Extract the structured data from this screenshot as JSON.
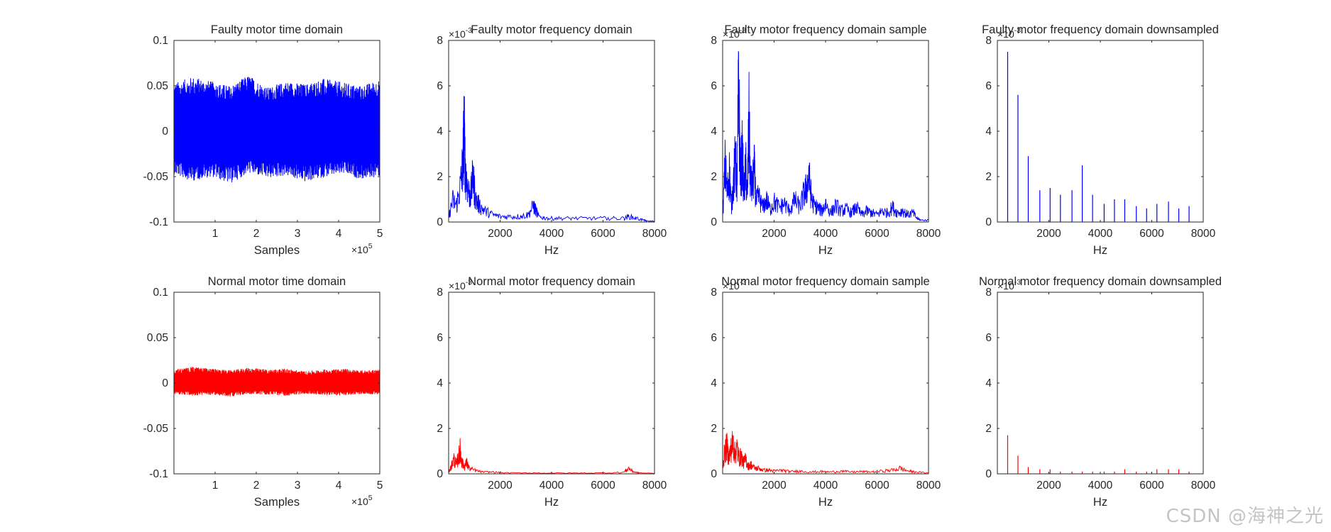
{
  "colors": {
    "faulty": "#0000ff",
    "normal": "#ff0000",
    "axis": "#262626"
  },
  "watermark": "CSDN @海神之光",
  "chart_data": [
    {
      "id": "faulty-time",
      "type": "line",
      "title": "Faulty motor time domain",
      "xlabel": "Samples",
      "x_exponent_base": "×10",
      "x_exponent_power": "5",
      "xlim": [
        0,
        500000
      ],
      "ylim": [
        -0.1,
        0.1
      ],
      "xticks": [
        100000,
        200000,
        300000,
        400000,
        500000
      ],
      "xticklabels": [
        "1",
        "2",
        "3",
        "4",
        "5"
      ],
      "yticks": [
        -0.1,
        -0.05,
        0,
        0.05,
        0.1
      ],
      "yticklabels": [
        "-0.1",
        "-0.05",
        "0",
        "0.05",
        "0.1"
      ],
      "series": [
        {
          "name": "faulty",
          "color": "#0000ff",
          "envelope_upper": [
            0.053,
            0.06,
            0.055,
            0.05,
            0.062,
            0.048,
            0.055,
            0.052,
            0.058,
            0.054,
            0.05,
            0.057
          ],
          "envelope_lower": [
            -0.048,
            -0.055,
            -0.05,
            -0.058,
            -0.046,
            -0.052,
            -0.049,
            -0.056,
            -0.051,
            -0.047,
            -0.053,
            -0.05
          ]
        }
      ]
    },
    {
      "id": "faulty-freq",
      "type": "line",
      "title": "Faulty motor frequency domain",
      "xlabel": "Hz",
      "y_exponent_base": "×10",
      "y_exponent_power": "-3",
      "xlim": [
        0,
        8000
      ],
      "ylim": [
        0,
        0.008
      ],
      "xticks": [
        2000,
        4000,
        6000,
        8000
      ],
      "xticklabels": [
        "2000",
        "4000",
        "6000",
        "8000"
      ],
      "yticks": [
        0,
        0.002,
        0.004,
        0.006,
        0.008
      ],
      "yticklabels": [
        "0",
        "2",
        "4",
        "6",
        "8"
      ],
      "series": [
        {
          "name": "faulty",
          "color": "#0000ff",
          "x": [
            0,
            150,
            300,
            450,
            550,
            600,
            650,
            750,
            850,
            950,
            1050,
            1200,
            1400,
            1700,
            2000,
            2400,
            2800,
            3100,
            3300,
            3400,
            3500,
            3800,
            4200,
            4800,
            5500,
            6200,
            6800,
            7000,
            7300,
            7600,
            7700,
            8000
          ],
          "y": [
            0.0002,
            0.0012,
            0.0009,
            0.0019,
            0.0031,
            0.0052,
            0.0028,
            0.0018,
            0.0014,
            0.0025,
            0.0012,
            0.0009,
            0.0006,
            0.0004,
            0.0003,
            0.0003,
            0.0003,
            0.0004,
            0.0009,
            0.0006,
            0.0003,
            0.0002,
            0.0002,
            0.0002,
            0.0002,
            0.0002,
            0.0002,
            0.0003,
            0.0002,
            0.0001,
            5e-05,
            5e-05
          ]
        }
      ]
    },
    {
      "id": "faulty-freq-sample",
      "type": "line",
      "title": "Faulty motor frequency domain sample",
      "xlabel": "Hz",
      "y_exponent_base": "×10",
      "y_exponent_power": "-3",
      "xlim": [
        0,
        8000
      ],
      "ylim": [
        0,
        0.008
      ],
      "xticks": [
        2000,
        4000,
        6000,
        8000
      ],
      "xticklabels": [
        "2000",
        "4000",
        "6000",
        "8000"
      ],
      "yticks": [
        0,
        0.002,
        0.004,
        0.006,
        0.008
      ],
      "yticklabels": [
        "0",
        "2",
        "4",
        "6",
        "8"
      ],
      "series": [
        {
          "name": "faulty",
          "color": "#0000ff",
          "x": [
            0,
            100,
            180,
            260,
            340,
            420,
            500,
            560,
            620,
            700,
            760,
            830,
            900,
            960,
            1020,
            1080,
            1150,
            1230,
            1300,
            1400,
            1550,
            1700,
            1850,
            2000,
            2200,
            2400,
            2600,
            2800,
            3000,
            3150,
            3250,
            3350,
            3450,
            3550,
            3700,
            3850,
            4000,
            4200,
            4400,
            4600,
            4800,
            5000,
            5200,
            5400,
            5600,
            5800,
            6000,
            6200,
            6400,
            6600,
            6800,
            7000,
            7200,
            7400,
            7550,
            7700,
            8000
          ],
          "y": [
            0.0002,
            0.0032,
            0.0015,
            0.0028,
            0.0008,
            0.0022,
            0.0035,
            0.0018,
            0.0075,
            0.0024,
            0.0038,
            0.0016,
            0.003,
            0.0012,
            0.0056,
            0.0022,
            0.0019,
            0.0029,
            0.0011,
            0.0014,
            0.0008,
            0.0012,
            0.0007,
            0.0011,
            0.0008,
            0.001,
            0.0006,
            0.0012,
            0.0008,
            0.0015,
            0.0018,
            0.0025,
            0.0013,
            0.0009,
            0.0008,
            0.0006,
            0.001,
            0.0005,
            0.0009,
            0.0006,
            0.0007,
            0.0005,
            0.0008,
            0.0004,
            0.0006,
            0.0005,
            0.0004,
            0.0006,
            0.0005,
            0.0008,
            0.0005,
            0.0006,
            0.0004,
            0.0005,
            0.0002,
            0.0001,
            0.0001
          ]
        }
      ]
    },
    {
      "id": "faulty-freq-down",
      "type": "bar",
      "title": "Faulty motor frequency domain downsampled",
      "xlabel": "Hz",
      "y_exponent_base": "×10",
      "y_exponent_power": "-3",
      "xlim": [
        0,
        8000
      ],
      "ylim": [
        0,
        0.008
      ],
      "xticks": [
        2000,
        4000,
        6000,
        8000
      ],
      "xticklabels": [
        "2000",
        "4000",
        "6000",
        "8000"
      ],
      "yticks": [
        0,
        0.002,
        0.004,
        0.006,
        0.008
      ],
      "yticklabels": [
        "0",
        "2",
        "4",
        "6",
        "8"
      ],
      "series": [
        {
          "name": "faulty",
          "color": "#0000ff",
          "x": [
            400,
            800,
            1200,
            1650,
            2050,
            2450,
            2900,
            3300,
            3700,
            4150,
            4550,
            4950,
            5400,
            5800,
            6200,
            6650,
            7050,
            7450
          ],
          "y": [
            0.0075,
            0.0056,
            0.0029,
            0.0014,
            0.0015,
            0.0012,
            0.0014,
            0.0025,
            0.0012,
            0.0008,
            0.001,
            0.001,
            0.0007,
            0.0006,
            0.0008,
            0.0009,
            0.0006,
            0.0007
          ]
        }
      ]
    },
    {
      "id": "normal-time",
      "type": "line",
      "title": "Normal motor time domain",
      "xlabel": "Samples",
      "x_exponent_base": "×10",
      "x_exponent_power": "5",
      "xlim": [
        0,
        500000
      ],
      "ylim": [
        -0.1,
        0.1
      ],
      "xticks": [
        100000,
        200000,
        300000,
        400000,
        500000
      ],
      "xticklabels": [
        "1",
        "2",
        "3",
        "4",
        "5"
      ],
      "yticks": [
        -0.1,
        -0.05,
        0,
        0.05,
        0.1
      ],
      "yticklabels": [
        "-0.1",
        "-0.05",
        "0",
        "0.05",
        "0.1"
      ],
      "series": [
        {
          "name": "normal",
          "color": "#ff0000",
          "envelope_upper": [
            0.015,
            0.018,
            0.016,
            0.014,
            0.017,
            0.015,
            0.016,
            0.013,
            0.015,
            0.016,
            0.014,
            0.015
          ],
          "envelope_lower": [
            -0.012,
            -0.014,
            -0.013,
            -0.015,
            -0.012,
            -0.013,
            -0.014,
            -0.012,
            -0.013,
            -0.014,
            -0.012,
            -0.013
          ]
        }
      ]
    },
    {
      "id": "normal-freq",
      "type": "line",
      "title": "Normal motor frequency domain",
      "xlabel": "Hz",
      "y_exponent_base": "×10",
      "y_exponent_power": "-3",
      "xlim": [
        0,
        8000
      ],
      "ylim": [
        0,
        0.008
      ],
      "xticks": [
        2000,
        4000,
        6000,
        8000
      ],
      "xticklabels": [
        "2000",
        "4000",
        "6000",
        "8000"
      ],
      "yticks": [
        0,
        0.002,
        0.004,
        0.006,
        0.008
      ],
      "yticklabels": [
        "0",
        "2",
        "4",
        "6",
        "8"
      ],
      "series": [
        {
          "name": "normal",
          "color": "#ff0000",
          "x": [
            0,
            100,
            200,
            300,
            400,
            450,
            500,
            600,
            700,
            800,
            1000,
            1300,
            1700,
            2200,
            3000,
            4000,
            5000,
            6000,
            6800,
            7000,
            7200,
            7400,
            8000
          ],
          "y": [
            0.0001,
            0.0004,
            0.0008,
            0.0005,
            0.001,
            0.0013,
            0.0007,
            0.0004,
            0.0006,
            0.0003,
            0.0002,
            0.0001,
            0.0001,
            5e-05,
            5e-05,
            4e-05,
            4e-05,
            5e-05,
            8e-05,
            0.0003,
            0.0001,
            5e-05,
            3e-05
          ]
        }
      ]
    },
    {
      "id": "normal-freq-sample",
      "type": "line",
      "title": "Normal motor frequency domain sample",
      "xlabel": "Hz",
      "y_exponent_base": "×10",
      "y_exponent_power": "-3",
      "xlim": [
        0,
        8000
      ],
      "ylim": [
        0,
        0.008
      ],
      "xticks": [
        2000,
        4000,
        6000,
        8000
      ],
      "xticklabels": [
        "2000",
        "4000",
        "6000",
        "8000"
      ],
      "yticks": [
        0,
        0.002,
        0.004,
        0.006,
        0.008
      ],
      "yticklabels": [
        "0",
        "2",
        "4",
        "6",
        "8"
      ],
      "series": [
        {
          "name": "normal",
          "color": "#ff0000",
          "x": [
            0,
            80,
            160,
            240,
            320,
            400,
            480,
            560,
            640,
            720,
            800,
            900,
            1000,
            1100,
            1250,
            1400,
            1600,
            1800,
            2000,
            2300,
            2600,
            3000,
            3400,
            3800,
            4200,
            4600,
            5000,
            5400,
            5800,
            6200,
            6600,
            6900,
            7200,
            7500,
            8000
          ],
          "y": [
            0.0004,
            0.0012,
            0.0015,
            0.0009,
            0.0013,
            0.0017,
            0.0011,
            0.0014,
            0.0008,
            0.001,
            0.0006,
            0.0008,
            0.0004,
            0.0005,
            0.0003,
            0.0003,
            0.0002,
            0.0002,
            0.00015,
            0.0002,
            0.00012,
            0.00015,
            0.0001,
            0.00012,
            0.0001,
            0.00015,
            0.0001,
            0.00012,
            0.0001,
            0.00015,
            0.0002,
            0.0003,
            0.00015,
            0.0001,
            5e-05
          ]
        }
      ]
    },
    {
      "id": "normal-freq-down",
      "type": "bar",
      "title": "Normal motor frequency domain downsampled",
      "xlabel": "Hz",
      "y_exponent_base": "×10",
      "y_exponent_power": "-3",
      "xlim": [
        0,
        8000
      ],
      "ylim": [
        0,
        0.008
      ],
      "xticks": [
        2000,
        4000,
        6000,
        8000
      ],
      "xticklabels": [
        "2000",
        "4000",
        "6000",
        "8000"
      ],
      "yticks": [
        0,
        0.002,
        0.004,
        0.006,
        0.008
      ],
      "yticklabels": [
        "0",
        "2",
        "4",
        "6",
        "8"
      ],
      "series": [
        {
          "name": "normal",
          "color": "#ff0000",
          "x": [
            400,
            800,
            1200,
            1650,
            2050,
            2450,
            2900,
            3300,
            3700,
            4150,
            4550,
            4950,
            5400,
            5800,
            6200,
            6650,
            7050,
            7450
          ],
          "y": [
            0.0017,
            0.0008,
            0.0003,
            0.0002,
            0.0002,
            0.0001,
            0.0001,
            0.0001,
            0.0001,
            0.0001,
            0.0001,
            0.0002,
            0.0001,
            0.0001,
            0.0002,
            0.0002,
            0.0002,
            0.0001
          ]
        }
      ]
    }
  ]
}
